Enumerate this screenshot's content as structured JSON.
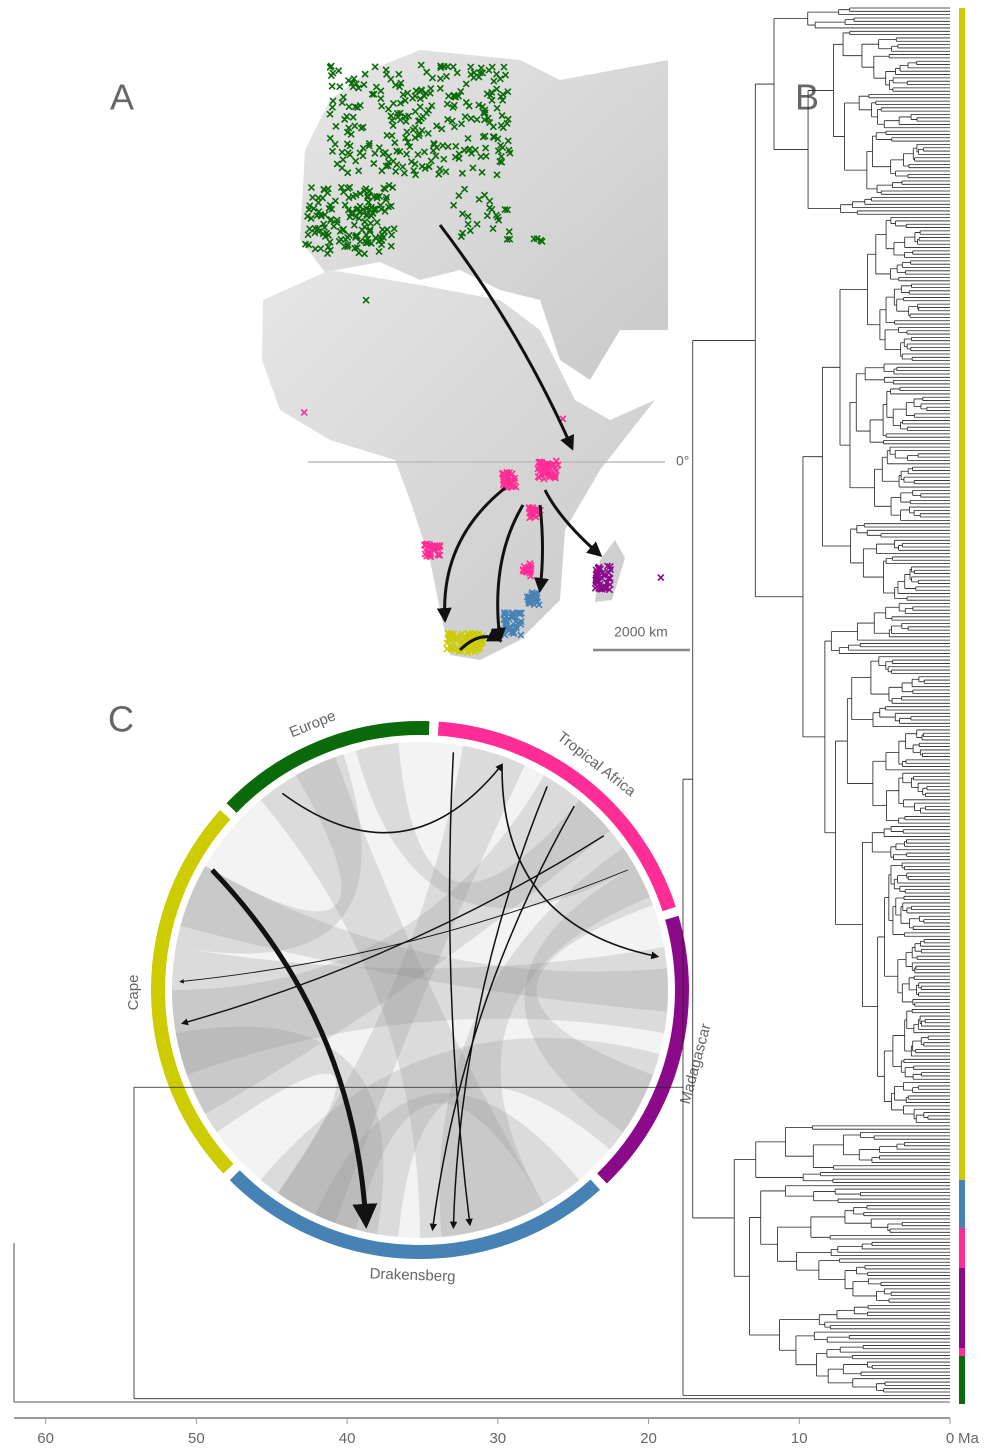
{
  "panels": {
    "a": "A",
    "b": "B",
    "c": "C"
  },
  "map": {
    "equator_label": "0°",
    "scale_label": "2000 km"
  },
  "chord": {
    "regions": [
      {
        "name": "Europe",
        "color": "#0b6b0b"
      },
      {
        "name": "Tropical Africa",
        "color": "#ff2d95"
      },
      {
        "name": "Madagascar",
        "color": "#8a0a8a"
      },
      {
        "name": "Drakensberg",
        "color": "#4682b4"
      },
      {
        "name": "Cape",
        "color": "#cccc00"
      }
    ]
  },
  "chart_data": {
    "type": "tree",
    "xlim": [
      62.1,
      0
    ],
    "xticks": [
      60,
      50,
      40,
      30,
      20,
      10,
      0
    ],
    "x_label": "Ma"
  }
}
